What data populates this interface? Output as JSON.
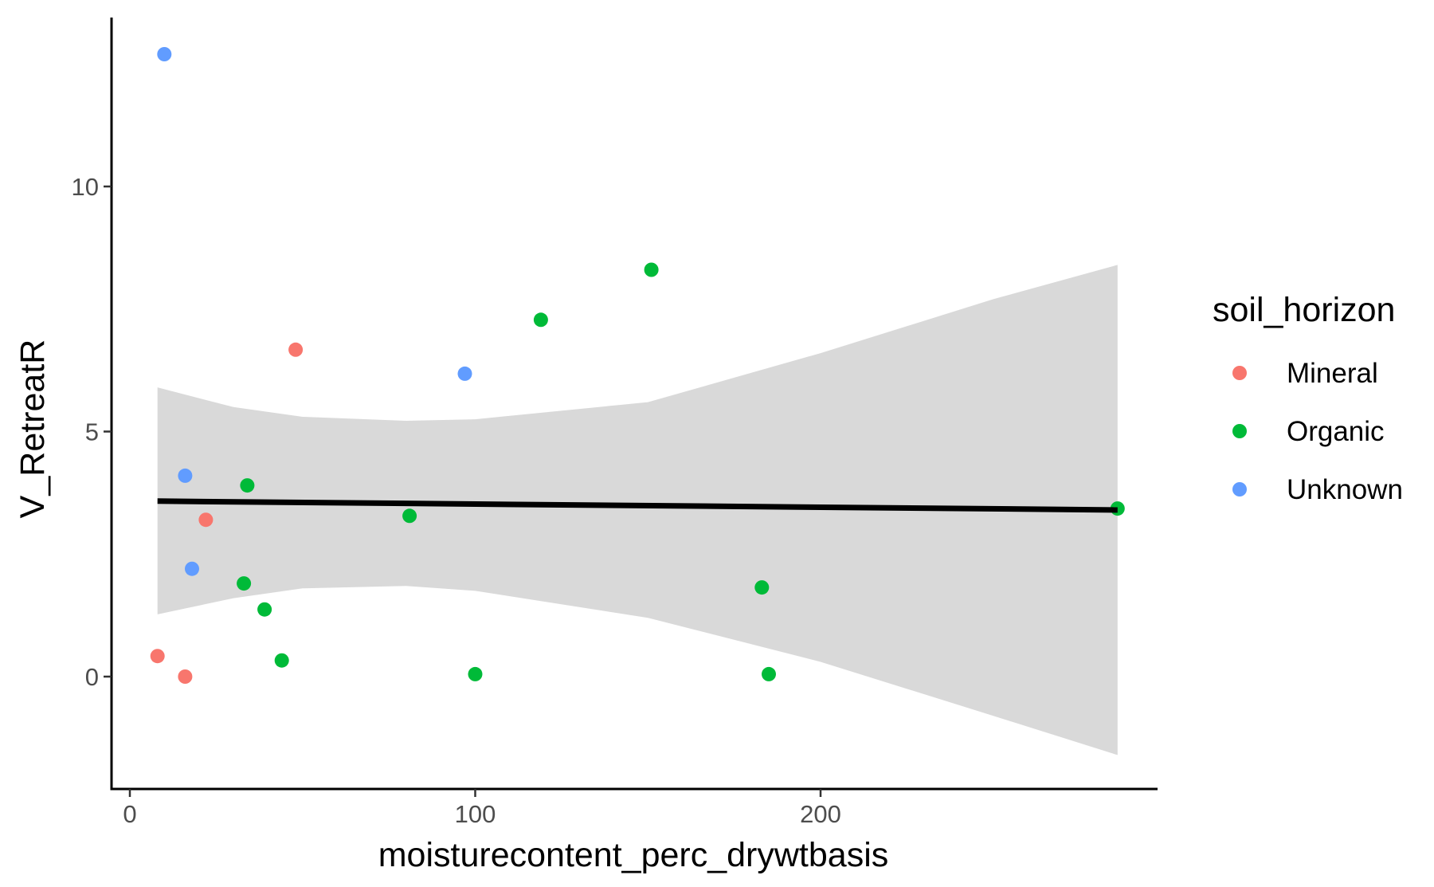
{
  "chart_data": {
    "type": "scatter",
    "title": "",
    "xlabel": "moisturecontent_perc_drywtbasis",
    "ylabel": "V_RetreatR",
    "xlim": [
      -6,
      300
    ],
    "ylim": [
      -2.3,
      13.5
    ],
    "x_ticks": [
      0,
      100,
      200
    ],
    "y_ticks": [
      0,
      5,
      10
    ],
    "grid": false,
    "legend": {
      "title": "soil_horizon",
      "placement": "right",
      "entries": [
        {
          "name": "Mineral",
          "color": "#F8766D"
        },
        {
          "name": "Organic",
          "color": "#00BA38"
        },
        {
          "name": "Unknown",
          "color": "#619CFF"
        }
      ]
    },
    "series": [
      {
        "name": "Mineral",
        "color": "#F8766D",
        "points": [
          {
            "x": 8,
            "y": 0.42
          },
          {
            "x": 16,
            "y": 0.0
          },
          {
            "x": 22,
            "y": 3.2
          },
          {
            "x": 48,
            "y": 6.67
          }
        ]
      },
      {
        "name": "Organic",
        "color": "#00BA38",
        "points": [
          {
            "x": 33,
            "y": 1.9
          },
          {
            "x": 34,
            "y": 3.9
          },
          {
            "x": 39,
            "y": 1.37
          },
          {
            "x": 44,
            "y": 0.33
          },
          {
            "x": 81,
            "y": 3.28
          },
          {
            "x": 100,
            "y": 0.05
          },
          {
            "x": 119,
            "y": 7.28
          },
          {
            "x": 151,
            "y": 8.3
          },
          {
            "x": 183,
            "y": 1.82
          },
          {
            "x": 185,
            "y": 0.05
          },
          {
            "x": 286,
            "y": 3.43
          }
        ]
      },
      {
        "name": "Unknown",
        "color": "#619CFF",
        "points": [
          {
            "x": 10,
            "y": 12.7
          },
          {
            "x": 16,
            "y": 4.1
          },
          {
            "x": 18,
            "y": 2.2
          },
          {
            "x": 97,
            "y": 6.18
          }
        ]
      }
    ],
    "trend_line": {
      "method": "linear",
      "color": "#000000",
      "x": [
        8,
        286
      ],
      "y": [
        3.58,
        3.4
      ],
      "ci_band": {
        "color": "#d9d9d9",
        "x": [
          8,
          30,
          50,
          80,
          100,
          150,
          200,
          250,
          286
        ],
        "lower": [
          1.27,
          1.6,
          1.8,
          1.85,
          1.75,
          1.2,
          0.3,
          -0.8,
          -1.6
        ],
        "upper": [
          5.9,
          5.5,
          5.3,
          5.22,
          5.25,
          5.6,
          6.6,
          7.7,
          8.4
        ]
      }
    }
  }
}
